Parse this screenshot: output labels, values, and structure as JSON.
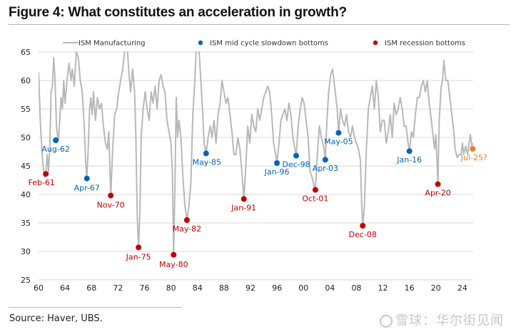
{
  "title": "Figure 4: What constitutes an acceleration in growth?",
  "source": "Source: Haver, UBS.",
  "watermark": "雪球：华尔街见闻",
  "colors": {
    "line": "#b8b8b8",
    "mid_cycle": "#0063be",
    "recession": "#c00000",
    "current": "#ed7d31",
    "grid": "#d9d9d9"
  },
  "chart_data": {
    "type": "line",
    "title": "Figure 4: What constitutes an acceleration in growth?",
    "xlabel": "",
    "ylabel": "",
    "xlim": [
      1960,
      2026.5
    ],
    "ylim": [
      25,
      65
    ],
    "yticks": [
      25,
      30,
      35,
      40,
      45,
      50,
      55,
      60,
      65
    ],
    "xticks": [
      1960,
      1964,
      1968,
      1972,
      1976,
      1980,
      1984,
      1988,
      1992,
      1996,
      2000,
      2004,
      2008,
      2012,
      2016,
      2020,
      2024
    ],
    "xtick_labels": [
      "60",
      "64",
      "68",
      "72",
      "76",
      "80",
      "84",
      "88",
      "92",
      "96",
      "00",
      "04",
      "08",
      "12",
      "16",
      "20",
      "24"
    ],
    "grid": "horizontal",
    "legend": {
      "placement": "top",
      "entries": [
        {
          "label": "ISM Manufacturing",
          "kind": "line",
          "color": "#b8b8b8"
        },
        {
          "label": "ISM mid cycle slowdown bottoms",
          "kind": "dot",
          "color": "#0063be"
        },
        {
          "label": "ISM recession bottoms",
          "kind": "dot",
          "color": "#c00000"
        }
      ]
    },
    "series": [
      {
        "name": "ISM Manufacturing",
        "approximate": true,
        "points": [
          [
            1960.0,
            61.5
          ],
          [
            1960.3,
            52
          ],
          [
            1960.6,
            46
          ],
          [
            1960.9,
            43
          ],
          [
            1961.1,
            43.5
          ],
          [
            1961.3,
            47
          ],
          [
            1961.5,
            44
          ],
          [
            1961.7,
            48
          ],
          [
            1961.9,
            58
          ],
          [
            1962.1,
            59
          ],
          [
            1962.3,
            64
          ],
          [
            1962.5,
            60
          ],
          [
            1962.7,
            52
          ],
          [
            1962.9,
            50
          ],
          [
            1963.0,
            49.5
          ],
          [
            1963.2,
            53
          ],
          [
            1963.4,
            57
          ],
          [
            1963.6,
            55
          ],
          [
            1963.8,
            60
          ],
          [
            1964.0,
            56
          ],
          [
            1964.3,
            60
          ],
          [
            1964.6,
            63
          ],
          [
            1964.9,
            60
          ],
          [
            1965.1,
            62
          ],
          [
            1965.4,
            59
          ],
          [
            1965.7,
            65
          ],
          [
            1966.0,
            64
          ],
          [
            1966.3,
            60
          ],
          [
            1966.6,
            58
          ],
          [
            1966.9,
            52
          ],
          [
            1967.1,
            46
          ],
          [
            1967.3,
            43
          ],
          [
            1967.5,
            48
          ],
          [
            1967.7,
            55
          ],
          [
            1967.9,
            57
          ],
          [
            1968.1,
            54
          ],
          [
            1968.3,
            58
          ],
          [
            1968.6,
            53
          ],
          [
            1968.9,
            57
          ],
          [
            1969.2,
            55
          ],
          [
            1969.5,
            56
          ],
          [
            1969.8,
            52
          ],
          [
            1970.1,
            49
          ],
          [
            1970.4,
            48
          ],
          [
            1970.6,
            51
          ],
          [
            1970.9,
            39.8
          ],
          [
            1971.2,
            48
          ],
          [
            1971.5,
            54
          ],
          [
            1971.8,
            55
          ],
          [
            1972.1,
            58
          ],
          [
            1972.4,
            60
          ],
          [
            1972.7,
            62
          ],
          [
            1973.0,
            65
          ],
          [
            1973.3,
            68
          ],
          [
            1973.6,
            62
          ],
          [
            1973.9,
            58
          ],
          [
            1974.2,
            62
          ],
          [
            1974.5,
            58
          ],
          [
            1974.7,
            50
          ],
          [
            1974.9,
            36
          ],
          [
            1975.1,
            30.7
          ],
          [
            1975.3,
            37
          ],
          [
            1975.5,
            50
          ],
          [
            1975.8,
            55
          ],
          [
            1976.1,
            58
          ],
          [
            1976.4,
            55
          ],
          [
            1976.7,
            53
          ],
          [
            1977.0,
            58
          ],
          [
            1977.3,
            56
          ],
          [
            1977.6,
            59
          ],
          [
            1977.9,
            55
          ],
          [
            1978.2,
            60
          ],
          [
            1978.5,
            61
          ],
          [
            1978.8,
            59
          ],
          [
            1979.1,
            58
          ],
          [
            1979.4,
            53
          ],
          [
            1979.7,
            51
          ],
          [
            1980.0,
            49
          ],
          [
            1980.2,
            44
          ],
          [
            1980.4,
            29.4
          ],
          [
            1980.6,
            42
          ],
          [
            1980.8,
            57
          ],
          [
            1981.0,
            50
          ],
          [
            1981.2,
            53
          ],
          [
            1981.5,
            50
          ],
          [
            1981.8,
            43
          ],
          [
            1982.1,
            38
          ],
          [
            1982.4,
            35.5
          ],
          [
            1982.7,
            38
          ],
          [
            1983.0,
            42
          ],
          [
            1983.3,
            54
          ],
          [
            1983.6,
            60
          ],
          [
            1983.9,
            68
          ],
          [
            1984.2,
            66
          ],
          [
            1984.5,
            60
          ],
          [
            1984.8,
            54
          ],
          [
            1985.0,
            49
          ],
          [
            1985.3,
            47.2
          ],
          [
            1985.6,
            50
          ],
          [
            1985.9,
            52
          ],
          [
            1986.2,
            50
          ],
          [
            1986.5,
            53
          ],
          [
            1986.8,
            49
          ],
          [
            1987.1,
            54
          ],
          [
            1987.4,
            56
          ],
          [
            1987.7,
            60
          ],
          [
            1988.0,
            58
          ],
          [
            1988.3,
            56
          ],
          [
            1988.6,
            57
          ],
          [
            1988.9,
            54
          ],
          [
            1989.2,
            51
          ],
          [
            1989.5,
            47
          ],
          [
            1989.8,
            47
          ],
          [
            1990.1,
            50
          ],
          [
            1990.4,
            48
          ],
          [
            1990.7,
            44
          ],
          [
            1991.0,
            39.2
          ],
          [
            1991.3,
            45
          ],
          [
            1991.6,
            52
          ],
          [
            1991.9,
            49
          ],
          [
            1992.2,
            54
          ],
          [
            1992.5,
            52
          ],
          [
            1992.8,
            51
          ],
          [
            1993.1,
            55
          ],
          [
            1993.4,
            53
          ],
          [
            1993.7,
            55
          ],
          [
            1994.0,
            57
          ],
          [
            1994.3,
            58
          ],
          [
            1994.6,
            59
          ],
          [
            1994.9,
            58
          ],
          [
            1995.2,
            54
          ],
          [
            1995.5,
            49
          ],
          [
            1995.8,
            47
          ],
          [
            1996.0,
            45.5
          ],
          [
            1996.3,
            49
          ],
          [
            1996.6,
            53
          ],
          [
            1996.9,
            54
          ],
          [
            1997.2,
            55
          ],
          [
            1997.5,
            53
          ],
          [
            1997.8,
            56
          ],
          [
            1998.1,
            54
          ],
          [
            1998.4,
            50
          ],
          [
            1998.7,
            48
          ],
          [
            1998.9,
            46.8
          ],
          [
            1999.2,
            52
          ],
          [
            1999.5,
            55
          ],
          [
            1999.8,
            57
          ],
          [
            2000.1,
            56
          ],
          [
            2000.4,
            53
          ],
          [
            2000.7,
            50
          ],
          [
            2001.0,
            44
          ],
          [
            2001.3,
            43
          ],
          [
            2001.6,
            41.5
          ],
          [
            2001.8,
            40.8
          ],
          [
            2002.1,
            47
          ],
          [
            2002.4,
            52
          ],
          [
            2002.7,
            50
          ],
          [
            2002.9,
            49
          ],
          [
            2003.1,
            48
          ],
          [
            2003.3,
            46.1
          ],
          [
            2003.5,
            52
          ],
          [
            2003.8,
            58
          ],
          [
            2004.1,
            61
          ],
          [
            2004.4,
            62
          ],
          [
            2004.8,
            58
          ],
          [
            2005.1,
            55
          ],
          [
            2005.3,
            50.8
          ],
          [
            2005.6,
            55
          ],
          [
            2005.9,
            53
          ],
          [
            2006.2,
            52
          ],
          [
            2006.5,
            54
          ],
          [
            2006.8,
            51
          ],
          [
            2007.1,
            50
          ],
          [
            2007.4,
            52
          ],
          [
            2007.7,
            50
          ],
          [
            2008.0,
            49
          ],
          [
            2008.3,
            48
          ],
          [
            2008.6,
            46
          ],
          [
            2008.8,
            38
          ],
          [
            2008.95,
            34.5
          ],
          [
            2009.2,
            38
          ],
          [
            2009.5,
            48
          ],
          [
            2009.8,
            55
          ],
          [
            2010.1,
            57
          ],
          [
            2010.4,
            59
          ],
          [
            2010.7,
            55
          ],
          [
            2011.0,
            60
          ],
          [
            2011.3,
            57
          ],
          [
            2011.6,
            51
          ],
          [
            2011.9,
            53
          ],
          [
            2012.2,
            53
          ],
          [
            2012.5,
            49
          ],
          [
            2012.8,
            51
          ],
          [
            2013.1,
            54
          ],
          [
            2013.4,
            50
          ],
          [
            2013.7,
            56
          ],
          [
            2014.0,
            54
          ],
          [
            2014.3,
            55
          ],
          [
            2014.6,
            57
          ],
          [
            2014.9,
            55
          ],
          [
            2015.2,
            52
          ],
          [
            2015.5,
            52
          ],
          [
            2015.8,
            49
          ],
          [
            2016.0,
            47.6
          ],
          [
            2016.3,
            51
          ],
          [
            2016.6,
            50
          ],
          [
            2016.9,
            54
          ],
          [
            2017.2,
            57
          ],
          [
            2017.5,
            57
          ],
          [
            2017.8,
            59
          ],
          [
            2018.1,
            60
          ],
          [
            2018.4,
            58
          ],
          [
            2018.7,
            60
          ],
          [
            2018.9,
            57
          ],
          [
            2019.2,
            54
          ],
          [
            2019.5,
            51
          ],
          [
            2019.8,
            48
          ],
          [
            2020.0,
            50.5
          ],
          [
            2020.3,
            41.8
          ],
          [
            2020.5,
            53
          ],
          [
            2020.8,
            59
          ],
          [
            2021.0,
            60
          ],
          [
            2021.2,
            63.5
          ],
          [
            2021.5,
            60
          ],
          [
            2021.8,
            60
          ],
          [
            2022.1,
            57
          ],
          [
            2022.4,
            54
          ],
          [
            2022.7,
            51
          ],
          [
            2022.9,
            48
          ],
          [
            2023.2,
            46.5
          ],
          [
            2023.5,
            47
          ],
          [
            2023.8,
            47
          ],
          [
            2024.0,
            49
          ],
          [
            2024.2,
            47
          ],
          [
            2024.5,
            48.5
          ],
          [
            2024.8,
            47
          ],
          [
            2025.0,
            49
          ],
          [
            2025.2,
            50.5
          ],
          [
            2025.4,
            48.5
          ],
          [
            2025.6,
            49
          ]
        ]
      }
    ],
    "markers": [
      {
        "label": "Feb-61",
        "x": 1961.1,
        "y": 43.6,
        "group": "recession"
      },
      {
        "label": "Aug-62",
        "x": 1962.6,
        "y": 49.5,
        "group": "mid_cycle"
      },
      {
        "label": "Apr-67",
        "x": 1967.3,
        "y": 42.8,
        "group": "mid_cycle"
      },
      {
        "label": "Nov-70",
        "x": 1970.9,
        "y": 39.8,
        "group": "recession"
      },
      {
        "label": "Jan-75",
        "x": 1975.1,
        "y": 30.7,
        "group": "recession"
      },
      {
        "label": "May-80",
        "x": 1980.4,
        "y": 29.4,
        "group": "recession"
      },
      {
        "label": "May-82",
        "x": 1982.4,
        "y": 35.5,
        "group": "recession"
      },
      {
        "label": "May-85",
        "x": 1985.3,
        "y": 47.2,
        "group": "mid_cycle"
      },
      {
        "label": "Jan-91",
        "x": 1991.0,
        "y": 39.2,
        "group": "recession"
      },
      {
        "label": "Jan-96",
        "x": 1996.0,
        "y": 45.5,
        "group": "mid_cycle"
      },
      {
        "label": "Dec-98",
        "x": 1998.9,
        "y": 46.8,
        "group": "mid_cycle"
      },
      {
        "label": "Oct-01",
        "x": 2001.8,
        "y": 40.8,
        "group": "recession"
      },
      {
        "label": "Apr-03",
        "x": 2003.3,
        "y": 46.1,
        "group": "mid_cycle"
      },
      {
        "label": "May-05",
        "x": 2005.3,
        "y": 50.8,
        "group": "mid_cycle"
      },
      {
        "label": "Dec-08",
        "x": 2008.95,
        "y": 34.5,
        "group": "recession"
      },
      {
        "label": "Jan-16",
        "x": 2016.0,
        "y": 47.6,
        "group": "mid_cycle"
      },
      {
        "label": "Apr-20",
        "x": 2020.3,
        "y": 41.8,
        "group": "recession"
      },
      {
        "label": "Jul-25?",
        "x": 2025.55,
        "y": 48.0,
        "group": "current"
      }
    ]
  }
}
